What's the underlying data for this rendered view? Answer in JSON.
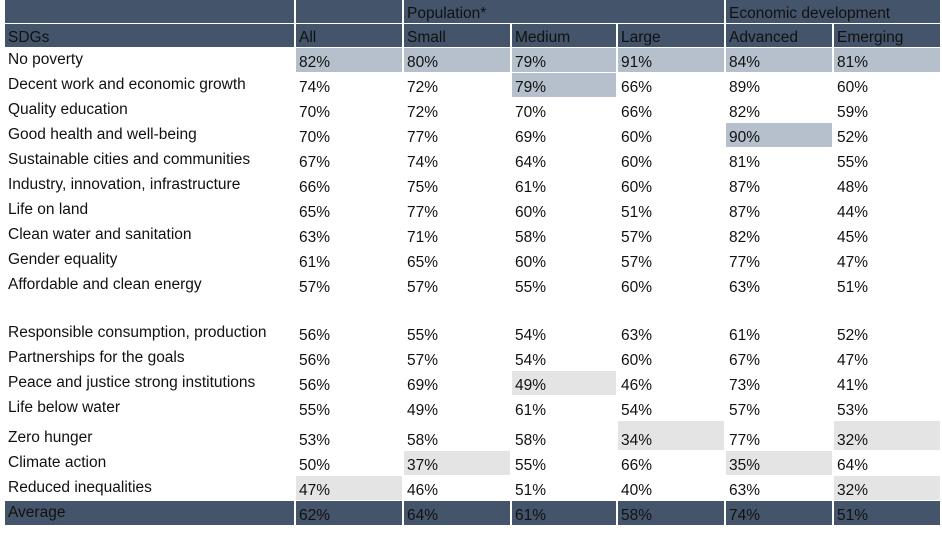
{
  "header": {
    "group_population": "Population*",
    "group_economic": "Economic development",
    "columns": [
      "SDGs",
      "All",
      "Small",
      "Medium",
      "Large",
      "Advanced",
      "Emerging"
    ]
  },
  "rows": [
    {
      "label": "No poverty",
      "values": [
        "82%",
        "80%",
        "79%",
        "91%",
        "84%",
        "81%"
      ],
      "highlight": [
        "hi",
        "hi",
        "hi",
        "hi",
        "hi",
        "hi"
      ]
    },
    {
      "label": "Decent work and economic growth",
      "values": [
        "74%",
        "72%",
        "79%",
        "66%",
        "89%",
        "60%"
      ],
      "highlight": [
        "",
        "",
        "hi",
        "",
        "",
        ""
      ]
    },
    {
      "label": "Quality education",
      "values": [
        "70%",
        "72%",
        "70%",
        "66%",
        "82%",
        "59%"
      ],
      "highlight": [
        "",
        "",
        "",
        "",
        "",
        ""
      ]
    },
    {
      "label": "Good health and well-being",
      "values": [
        "70%",
        "77%",
        "69%",
        "60%",
        "90%",
        "52%"
      ],
      "highlight": [
        "",
        "",
        "",
        "",
        "hi",
        ""
      ]
    },
    {
      "label": "Sustainable cities and communities",
      "values": [
        "67%",
        "74%",
        "64%",
        "60%",
        "81%",
        "55%"
      ],
      "highlight": [
        "",
        "",
        "",
        "",
        "",
        ""
      ]
    },
    {
      "label": "Industry, innovation, infrastructure",
      "values": [
        "66%",
        "75%",
        "61%",
        "60%",
        "87%",
        "48%"
      ],
      "highlight": [
        "",
        "",
        "",
        "",
        "",
        ""
      ]
    },
    {
      "label": "Life on land",
      "values": [
        "65%",
        "77%",
        "60%",
        "51%",
        "87%",
        "44%"
      ],
      "highlight": [
        "",
        "",
        "",
        "",
        "",
        ""
      ]
    },
    {
      "label": "Clean water and sanitation",
      "values": [
        "63%",
        "71%",
        "58%",
        "57%",
        "82%",
        "45%"
      ],
      "highlight": [
        "",
        "",
        "",
        "",
        "",
        ""
      ]
    },
    {
      "label": "Gender equality",
      "values": [
        "61%",
        "65%",
        "60%",
        "57%",
        "77%",
        "47%"
      ],
      "highlight": [
        "",
        "",
        "",
        "",
        "",
        ""
      ]
    },
    {
      "label": "Affordable and clean energy",
      "values": [
        "57%",
        "57%",
        "55%",
        "60%",
        "63%",
        "51%"
      ],
      "highlight": [
        "",
        "",
        "",
        "",
        "",
        ""
      ]
    },
    {
      "label": "Responsible consumption, production",
      "values": [
        "56%",
        "55%",
        "54%",
        "63%",
        "61%",
        "52%"
      ],
      "highlight": [
        "",
        "",
        "",
        "",
        "",
        ""
      ]
    },
    {
      "label": "Partnerships for the goals",
      "values": [
        "56%",
        "57%",
        "54%",
        "60%",
        "67%",
        "47%"
      ],
      "highlight": [
        "",
        "",
        "",
        "",
        "",
        ""
      ]
    },
    {
      "label": "Peace and justice strong institutions",
      "values": [
        "56%",
        "69%",
        "49%",
        "46%",
        "73%",
        "41%"
      ],
      "highlight": [
        "",
        "",
        "lo",
        "",
        "",
        ""
      ]
    },
    {
      "label": "Life below water",
      "values": [
        "55%",
        "49%",
        "61%",
        "54%",
        "57%",
        "53%"
      ],
      "highlight": [
        "",
        "",
        "",
        "",
        "",
        ""
      ]
    },
    {
      "label": "Zero hunger",
      "values": [
        "53%",
        "58%",
        "58%",
        "34%",
        "77%",
        "32%"
      ],
      "highlight": [
        "",
        "",
        "",
        "lo",
        "",
        "lo"
      ]
    },
    {
      "label": "Climate action",
      "values": [
        "50%",
        "37%",
        "55%",
        "66%",
        "35%",
        "64%"
      ],
      "highlight": [
        "",
        "lo",
        "",
        "",
        "lo",
        ""
      ]
    },
    {
      "label": "Reduced inequalities",
      "values": [
        "47%",
        "46%",
        "51%",
        "40%",
        "63%",
        "32%"
      ],
      "highlight": [
        "lo",
        "",
        "",
        "",
        "",
        "lo"
      ]
    }
  ],
  "footer": {
    "label": "Average",
    "values": [
      "62%",
      "64%",
      "61%",
      "58%",
      "74%",
      "51%"
    ]
  }
}
